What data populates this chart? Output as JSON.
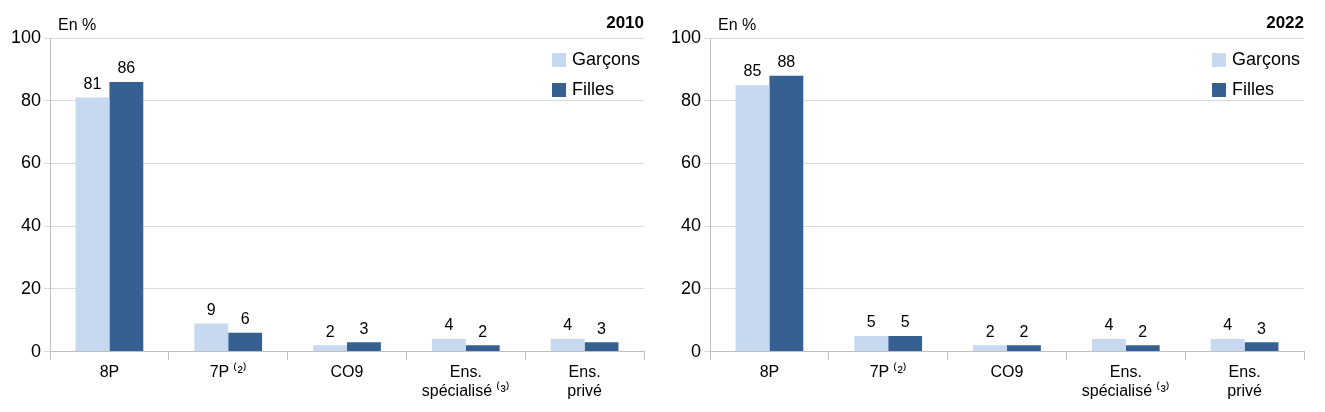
{
  "chart_data": [
    {
      "type": "bar",
      "title": "2010",
      "ylabel": "En %",
      "categories": [
        "8P",
        "7P ⁽²⁾",
        "CO9",
        "Ens. spécialisé ⁽³⁾",
        "Ens. privé"
      ],
      "series": [
        {
          "name": "Garçons",
          "color": "#c6d9f1",
          "values": [
            81,
            9,
            2,
            4,
            4
          ]
        },
        {
          "name": "Filles",
          "color": "#376092",
          "values": [
            86,
            6,
            3,
            2,
            3
          ]
        }
      ],
      "ylim": [
        0,
        100
      ],
      "yticks": [
        0,
        20,
        40,
        60,
        80,
        100
      ],
      "grid": "y",
      "legend": "top right",
      "data_labels": true
    },
    {
      "type": "bar",
      "title": "2022",
      "ylabel": "En %",
      "categories": [
        "8P",
        "7P ⁽²⁾",
        "CO9",
        "Ens. spécialisé ⁽³⁾",
        "Ens. privé"
      ],
      "series": [
        {
          "name": "Garçons",
          "color": "#c6d9f1",
          "values": [
            85,
            5,
            2,
            4,
            4
          ]
        },
        {
          "name": "Filles",
          "color": "#376092",
          "values": [
            88,
            5,
            2,
            2,
            3
          ]
        }
      ],
      "ylim": [
        0,
        100
      ],
      "yticks": [
        0,
        20,
        40,
        60,
        80,
        100
      ],
      "grid": "y",
      "legend": "top right",
      "data_labels": true
    }
  ]
}
